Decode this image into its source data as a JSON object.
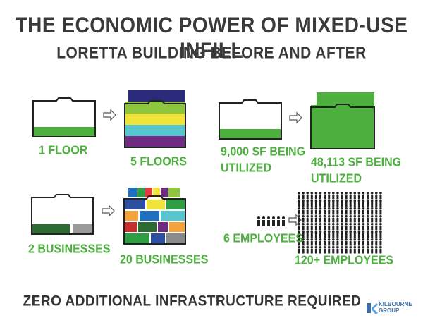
{
  "title": "THE ECONOMIC POWER OF MIXED-USE INFILL",
  "subtitle": "LORETTA BUILDING BEFORE AND AFTER",
  "comparisons": {
    "floors": {
      "before": "1 FLOOR",
      "after": "5 FLOORS"
    },
    "square_feet": {
      "before_line1": "9,000 SF BEING",
      "before_line2": "UTILIZED",
      "after_line1": "48,113 SF BEING",
      "after_line2": "UTILIZED"
    },
    "businesses": {
      "before": "2 BUSINESSES",
      "after": "20 BUSINESSES"
    },
    "employees": {
      "before": "6 EMPLOYEES",
      "after": "120+ EMPLOYEES"
    }
  },
  "footer": "ZERO ADDITIONAL INFRASTRUCTURE REQUIRED",
  "logo": {
    "line1": "KILBOURNE",
    "line2": "GROUP",
    "icon": "kilbourne-logo-icon"
  },
  "colors": {
    "accent_green": "#4caf3e",
    "dark_green": "#2e6b32",
    "floor_colors": [
      "#2c2a7a",
      "#8ec63f",
      "#f2e33b",
      "#55c6cf",
      "#6d2b82"
    ]
  }
}
